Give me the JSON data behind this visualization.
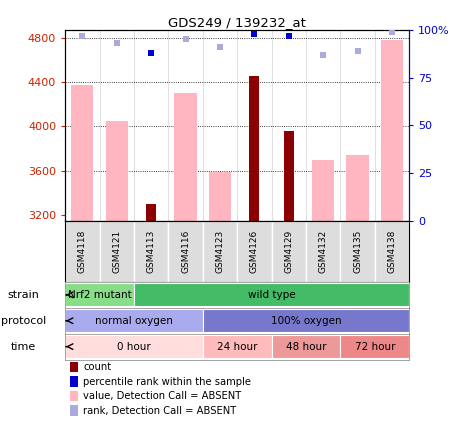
{
  "title": "GDS249 / 139232_at",
  "samples": [
    "GSM4118",
    "GSM4121",
    "GSM4113",
    "GSM4116",
    "GSM4123",
    "GSM4126",
    "GSM4129",
    "GSM4132",
    "GSM4135",
    "GSM4138"
  ],
  "count_values": [
    null,
    null,
    3300,
    null,
    null,
    4450,
    3960,
    null,
    null,
    null
  ],
  "count_color": "#8B0000",
  "value_absent": [
    4370,
    4050,
    null,
    4300,
    3590,
    null,
    null,
    3700,
    3740,
    4780
  ],
  "value_absent_color": "#FFB6C1",
  "percentile_rank": [
    97,
    93,
    88,
    95,
    91,
    98,
    97,
    87,
    89,
    99
  ],
  "percentile_dark_idx": [
    2,
    5,
    6
  ],
  "percentile_color_dark": "#0000CC",
  "percentile_color_light": "#AAAADD",
  "ylim_left": [
    3150,
    4870
  ],
  "ylim_right": [
    0,
    100
  ],
  "yticks_left": [
    3200,
    3600,
    4000,
    4400,
    4800
  ],
  "yticks_right": [
    0,
    25,
    50,
    75,
    100
  ],
  "ytick_labels_right": [
    "0",
    "25",
    "50",
    "75",
    "100%"
  ],
  "hgrid_values": [
    3600,
    4000,
    4400,
    4800
  ],
  "strain_labels": [
    {
      "text": "Nrf2 mutant",
      "start": 0,
      "end": 2,
      "color": "#88DD88"
    },
    {
      "text": "wild type",
      "start": 2,
      "end": 10,
      "color": "#44BB66"
    }
  ],
  "protocol_labels": [
    {
      "text": "normal oxygen",
      "start": 0,
      "end": 4,
      "color": "#AAAAEE"
    },
    {
      "text": "100% oxygen",
      "start": 4,
      "end": 10,
      "color": "#7777CC"
    }
  ],
  "time_labels": [
    {
      "text": "0 hour",
      "start": 0,
      "end": 4,
      "color": "#FFDDDD"
    },
    {
      "text": "24 hour",
      "start": 4,
      "end": 6,
      "color": "#FFBBBB"
    },
    {
      "text": "48 hour",
      "start": 6,
      "end": 8,
      "color": "#EE9999"
    },
    {
      "text": "72 hour",
      "start": 8,
      "end": 10,
      "color": "#EE8888"
    }
  ],
  "legend_items": [
    {
      "label": "count",
      "color": "#8B0000"
    },
    {
      "label": "percentile rank within the sample",
      "color": "#0000CC"
    },
    {
      "label": "value, Detection Call = ABSENT",
      "color": "#FFB6C1"
    },
    {
      "label": "rank, Detection Call = ABSENT",
      "color": "#AAAADD"
    }
  ]
}
